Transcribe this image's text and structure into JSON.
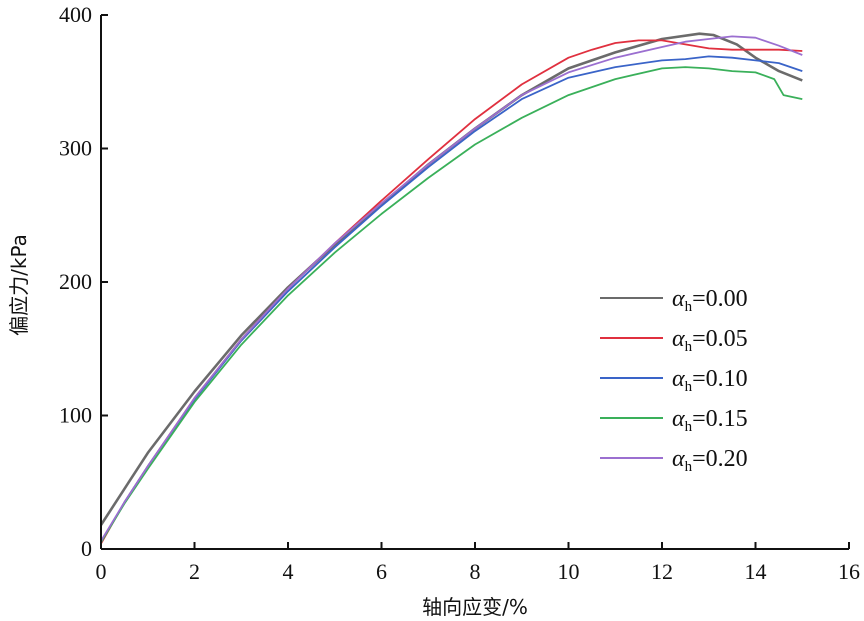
{
  "chart_data": {
    "type": "line",
    "xlabel": "轴向应变/%",
    "ylabel": "偏应力/kPa",
    "xlim": [
      0,
      16
    ],
    "ylim": [
      0,
      400
    ],
    "x_ticks": [
      "0",
      "2",
      "4",
      "6",
      "8",
      "10",
      "12",
      "14",
      "16"
    ],
    "y_ticks": [
      "0",
      "100",
      "200",
      "300",
      "400"
    ],
    "grid": false,
    "legend_position": "right",
    "series": [
      {
        "name": "αh=0.00",
        "symbol": "α",
        "subscript": "h",
        "value_text": "=0.00",
        "color": "#6b6b6b",
        "x": [
          0,
          0.5,
          1,
          2,
          3,
          4,
          5,
          6,
          7,
          8,
          9,
          10,
          11,
          12,
          12.8,
          13.1,
          13.6,
          14,
          14.5,
          15
        ],
        "y": [
          18,
          45,
          72,
          118,
          160,
          196,
          228,
          258,
          288,
          315,
          340,
          360,
          372,
          382,
          386,
          385,
          378,
          368,
          358,
          351
        ]
      },
      {
        "name": "αh=0.05",
        "symbol": "α",
        "subscript": "h",
        "value_text": "=0.05",
        "color": "#e0303f",
        "x": [
          0,
          0.5,
          1,
          2,
          3,
          4,
          5,
          6,
          7,
          8,
          9,
          10,
          10.5,
          11,
          11.5,
          12,
          12.5,
          13,
          13.5,
          14,
          14.5,
          15
        ],
        "y": [
          4,
          35,
          62,
          113,
          157,
          195,
          229,
          261,
          292,
          322,
          348,
          368,
          374,
          379,
          381,
          381,
          378,
          375,
          374,
          374,
          374,
          373
        ]
      },
      {
        "name": "αh=0.10",
        "symbol": "α",
        "subscript": "h",
        "value_text": "=0.10",
        "color": "#3a64c8",
        "x": [
          0,
          0.5,
          1,
          2,
          3,
          4,
          5,
          6,
          7,
          8,
          9,
          10,
          11,
          12,
          12.5,
          13,
          13.5,
          14,
          14.5,
          15
        ],
        "y": [
          5,
          35,
          62,
          112,
          156,
          193,
          226,
          257,
          286,
          313,
          337,
          353,
          361,
          366,
          367,
          369,
          368,
          366,
          364,
          358
        ]
      },
      {
        "name": "αh=0.15",
        "symbol": "α",
        "subscript": "h",
        "value_text": "=0.15",
        "color": "#3ab05a",
        "x": [
          0,
          0.5,
          1,
          2,
          3,
          4,
          5,
          6,
          7,
          8,
          9,
          10,
          11,
          12,
          12.5,
          13,
          13.5,
          14,
          14.4,
          14.6,
          15
        ],
        "y": [
          5,
          34,
          60,
          110,
          153,
          190,
          222,
          251,
          278,
          303,
          323,
          340,
          352,
          360,
          361,
          360,
          358,
          357,
          352,
          340,
          337
        ]
      },
      {
        "name": "αh=0.20",
        "symbol": "α",
        "subscript": "h",
        "value_text": "=0.20",
        "color": "#9b6fd0",
        "x": [
          0,
          0.5,
          1,
          2,
          3,
          4,
          5,
          6,
          7,
          8,
          9,
          10,
          11,
          12,
          12.5,
          13,
          13.5,
          14,
          14.5,
          15
        ],
        "y": [
          6,
          35,
          62,
          113,
          157,
          195,
          229,
          259,
          288,
          315,
          340,
          357,
          368,
          376,
          380,
          382,
          384,
          383,
          377,
          370
        ]
      }
    ]
  }
}
